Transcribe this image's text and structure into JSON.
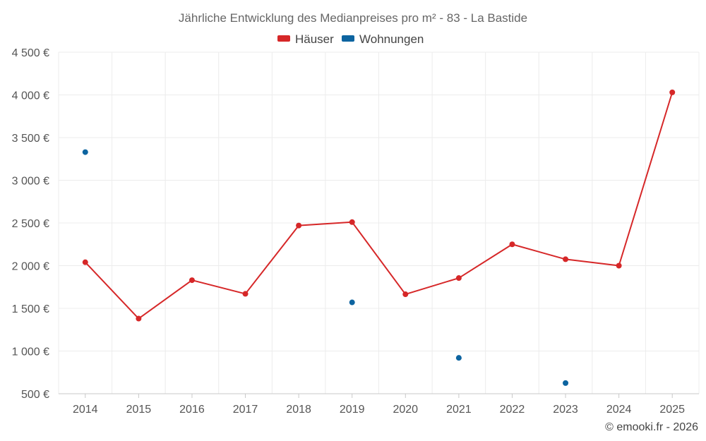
{
  "chart_data": {
    "type": "line",
    "title": "Jährliche Entwicklung des Medianpreises pro m² - 83 - La Bastide",
    "categories": [
      "2014",
      "2015",
      "2016",
      "2017",
      "2018",
      "2019",
      "2020",
      "2021",
      "2022",
      "2023",
      "2024",
      "2025"
    ],
    "series": [
      {
        "name": "Häuser",
        "color": "#d62728",
        "style": "line-markers",
        "values": [
          2040,
          1380,
          1830,
          1670,
          2470,
          2510,
          1665,
          1855,
          2250,
          2075,
          2000,
          4030
        ]
      },
      {
        "name": "Wohnungen",
        "color": "#0d64a0",
        "style": "markers",
        "values": [
          3330,
          null,
          null,
          null,
          null,
          1570,
          null,
          920,
          null,
          625,
          null,
          null
        ]
      }
    ],
    "ylim": [
      500,
      4500
    ],
    "yticks": [
      500,
      1000,
      1500,
      2000,
      2500,
      3000,
      3500,
      4000,
      4500
    ],
    "ytick_labels": [
      "500 €",
      "1 000 €",
      "1 500 €",
      "2 000 €",
      "2 500 €",
      "3 000 €",
      "3 500 €",
      "4 000 €",
      "4 500 €"
    ],
    "xlabel": "",
    "ylabel": "",
    "legend_position": "top-center",
    "grid": true
  },
  "credit": "© emooki.fr - 2026"
}
